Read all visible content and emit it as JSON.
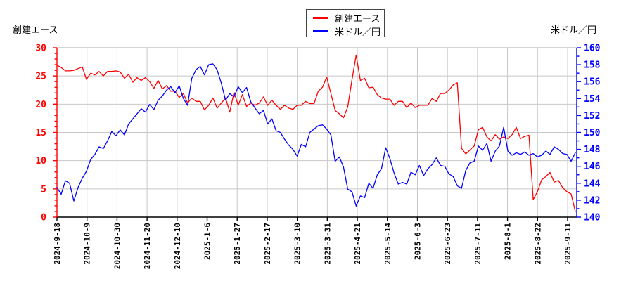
{
  "header": {
    "left_axis_title": "創建エース",
    "right_axis_title": "米ドル／円"
  },
  "legend": {
    "position": "top-center",
    "items": [
      {
        "label": "創建エース",
        "color": "#ff0000"
      },
      {
        "label": "米ドル／円",
        "color": "#0000ff"
      }
    ]
  },
  "chart_data": {
    "type": "line",
    "title": "",
    "xlabel": "",
    "ylabel_left": "創建エース",
    "ylabel_right": "米ドル／円",
    "x_tick_labels": [
      "2024-9-18",
      "2024-10-9",
      "2024-10-30",
      "2024-11-20",
      "2024-12-10",
      "2025-1-6",
      "2025-1-27",
      "2025-2-17",
      "2025-3-10",
      "2025-3-31",
      "2025-4-21",
      "2025-5-14",
      "2025-6-3",
      "2025-6-23",
      "2025-7-11",
      "2025-8-1",
      "2025-8-22",
      "2025-9-11"
    ],
    "left_axis": {
      "min": 0,
      "max": 30,
      "major_tick_step": 5,
      "minor_tick_step": 1,
      "color": "#ff0000",
      "tick_labels": [
        0,
        5,
        10,
        15,
        20,
        25,
        30
      ]
    },
    "right_axis": {
      "min": 140,
      "max": 160,
      "major_tick_step": 2,
      "minor_tick_step": 1,
      "color": "#0000ff",
      "tick_labels": [
        140,
        142,
        144,
        146,
        148,
        150,
        152,
        154,
        156,
        158,
        160
      ]
    },
    "grid": {
      "color": "#c8c8c8",
      "vertical_at_each_x_tick": true,
      "horizontal_every_left_units": 5,
      "top_border_color": "#aaaaaa",
      "bottom_axis_color": "#000000"
    },
    "series": [
      {
        "name": "創建エース",
        "axis": "left",
        "color": "#ff0000",
        "values": [
          26.9,
          26.5,
          25.9,
          25.9,
          26.0,
          26.3,
          26.6,
          24.4,
          25.5,
          25.2,
          25.8,
          25.0,
          25.8,
          25.8,
          25.9,
          25.7,
          24.6,
          25.3,
          23.9,
          24.7,
          24.2,
          24.7,
          24.0,
          22.8,
          24.2,
          22.7,
          23.3,
          22.3,
          22.3,
          21.2,
          21.9,
          20.2,
          21.1,
          20.5,
          20.5,
          19.0,
          19.8,
          21.1,
          19.3,
          20.2,
          21.1,
          18.6,
          22.1,
          19.8,
          21.7,
          19.6,
          20.2,
          19.8,
          20.2,
          21.3,
          19.8,
          20.7,
          19.8,
          19.1,
          19.8,
          19.3,
          19.1,
          19.8,
          19.8,
          20.5,
          20.1,
          20.1,
          22.3,
          23.0,
          24.8,
          21.9,
          18.9,
          18.3,
          17.6,
          19.5,
          24.3,
          28.7,
          24.2,
          24.6,
          22.9,
          23.0,
          21.7,
          21.1,
          20.9,
          20.9,
          19.8,
          20.5,
          20.5,
          19.4,
          20.2,
          19.4,
          19.8,
          19.8,
          19.8,
          21.0,
          20.5,
          21.9,
          21.9,
          22.5,
          23.4,
          23.8,
          12.2,
          11.2,
          11.9,
          12.6,
          15.5,
          15.9,
          14.2,
          13.5,
          14.6,
          13.8,
          14.2,
          13.9,
          14.6,
          15.9,
          13.9,
          14.3,
          14.5,
          3.1,
          4.5,
          6.6,
          7.2,
          7.9,
          6.2,
          6.5,
          5.2,
          4.5,
          4.1,
          1.0
        ]
      },
      {
        "name": "米ドル／円",
        "axis": "right",
        "color": "#0000ff",
        "values": [
          143.5,
          142.7,
          144.3,
          144.0,
          141.9,
          143.5,
          144.6,
          145.4,
          146.8,
          147.4,
          148.3,
          148.1,
          149.0,
          150.1,
          149.6,
          150.3,
          149.7,
          151.0,
          151.6,
          152.2,
          152.8,
          152.4,
          153.3,
          152.7,
          153.8,
          154.3,
          155.0,
          155.4,
          154.7,
          155.5,
          154.0,
          153.2,
          156.4,
          157.4,
          157.8,
          156.8,
          158.0,
          158.1,
          157.4,
          155.8,
          153.8,
          154.6,
          154.2,
          155.4,
          154.7,
          155.3,
          153.6,
          152.9,
          152.2,
          152.6,
          151.0,
          151.6,
          150.2,
          150.0,
          149.2,
          148.5,
          148.0,
          147.2,
          148.6,
          148.3,
          150.0,
          150.4,
          150.8,
          150.9,
          150.4,
          149.7,
          146.6,
          147.1,
          145.9,
          143.3,
          143.0,
          141.3,
          142.5,
          142.3,
          144.0,
          143.4,
          145.0,
          145.7,
          148.2,
          146.9,
          145.2,
          143.9,
          144.1,
          143.9,
          145.3,
          145.0,
          146.1,
          144.9,
          145.7,
          146.2,
          147.0,
          146.1,
          146.0,
          145.1,
          144.8,
          143.7,
          143.4,
          145.5,
          146.4,
          146.6,
          148.4,
          147.9,
          148.7,
          146.6,
          147.8,
          148.4,
          150.6,
          147.8,
          147.3,
          147.6,
          147.4,
          147.7,
          147.3,
          147.5,
          147.1,
          147.3,
          147.8,
          147.4,
          148.3,
          148.0,
          147.5,
          147.4,
          146.6,
          147.6
        ]
      }
    ],
    "notes": "values are evenly spaced samples spanning the full date range 2024-9-18 to just past 2025-9-11"
  }
}
